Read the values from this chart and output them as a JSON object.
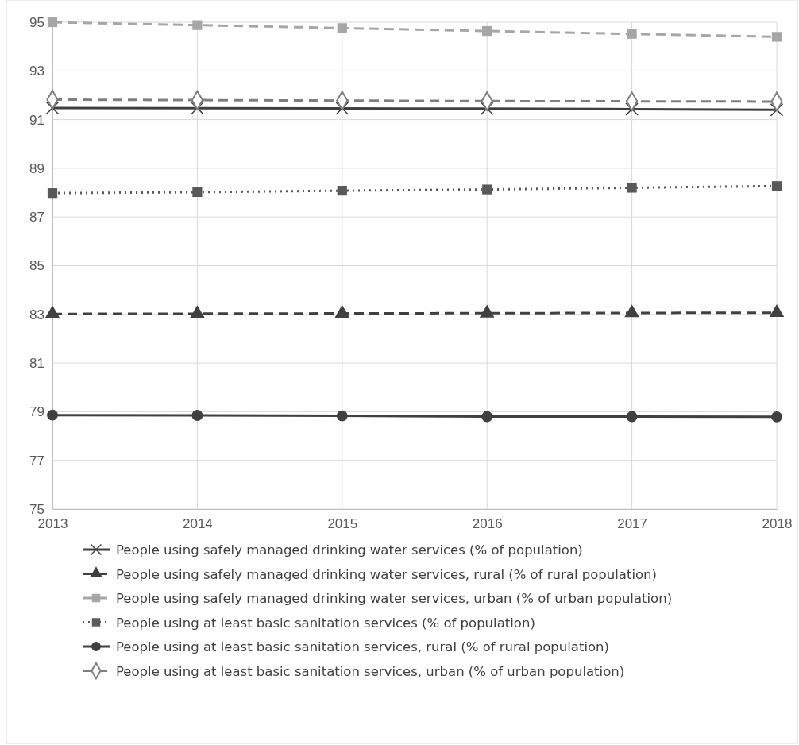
{
  "chart_data": {
    "type": "line",
    "x": [
      2013,
      2014,
      2015,
      2016,
      2017,
      2018
    ],
    "xlim": [
      2013,
      2018
    ],
    "xticks": [
      2013,
      2014,
      2015,
      2016,
      2017,
      2018
    ],
    "ylim": [
      75,
      95
    ],
    "yticks": [
      75,
      77,
      79,
      81,
      83,
      85,
      87,
      89,
      91,
      93,
      95
    ],
    "grid": true,
    "legend": "bottom",
    "series": [
      {
        "name": "People using safely managed drinking water services (% of population)",
        "color": "#404040",
        "marker": "cross",
        "line_style": "solid",
        "values": [
          91.48,
          91.47,
          91.46,
          91.45,
          91.43,
          91.4
        ]
      },
      {
        "name": "People using safely managed drinking water services, rural (% of rural population)",
        "color": "#404040",
        "marker": "triangle",
        "line_style": "dashed",
        "values": [
          83.02,
          83.03,
          83.04,
          83.05,
          83.06,
          83.07
        ]
      },
      {
        "name": "People using safely managed drinking water services, urban (% of urban population)",
        "color": "#a6a6a6",
        "marker": "square",
        "line_style": "dashed",
        "values": [
          95.0,
          94.88,
          94.76,
          94.64,
          94.52,
          94.4
        ]
      },
      {
        "name": "People using at least basic sanitation services (% of population)",
        "color": "#595959",
        "marker": "square",
        "line_style": "dotted",
        "values": [
          87.98,
          88.02,
          88.08,
          88.13,
          88.2,
          88.27
        ]
      },
      {
        "name": "People using at least basic sanitation services, rural (% of rural population)",
        "color": "#404040",
        "marker": "circle",
        "line_style": "solid",
        "values": [
          78.86,
          78.85,
          78.83,
          78.8,
          78.8,
          78.79
        ]
      },
      {
        "name": "People using at least basic sanitation services, urban (% of urban population)",
        "color": "#7f7f7f",
        "marker": "diamond",
        "line_style": "dashed",
        "values": [
          91.82,
          91.8,
          91.78,
          91.76,
          91.75,
          91.74
        ]
      }
    ]
  }
}
